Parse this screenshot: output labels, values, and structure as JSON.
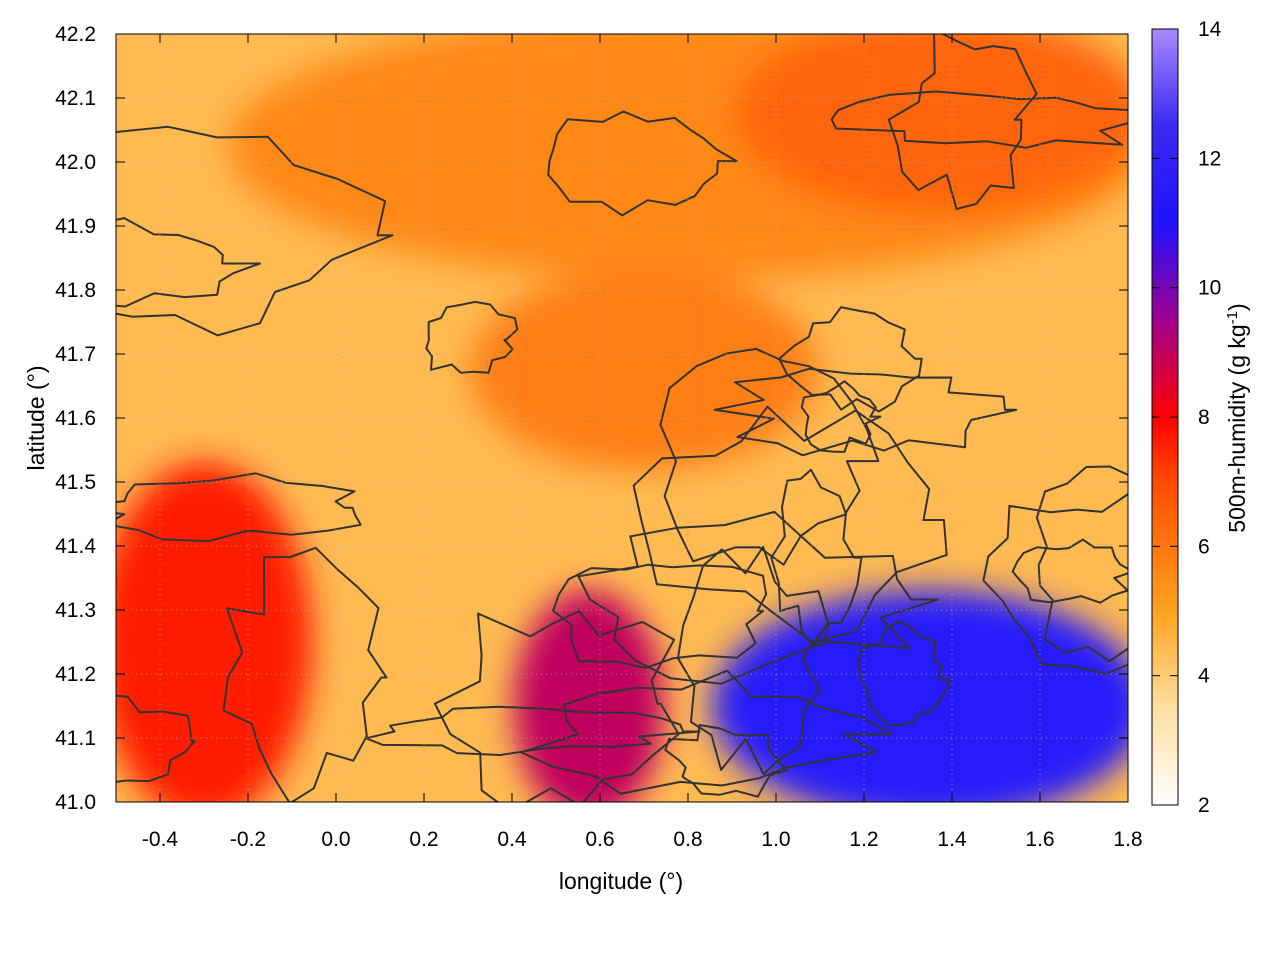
{
  "chart_data": {
    "type": "heatmap",
    "xlabel": "longitude (°)",
    "ylabel": "latitude (°)",
    "colorbar_label": "500m-humidity (g kg",
    "colorbar_label_superscript": "-1",
    "colorbar_label_suffix": ")",
    "xlim": [
      -0.5,
      1.8
    ],
    "ylim": [
      41.0,
      42.2
    ],
    "clim": [
      2,
      14
    ],
    "x_ticks": [
      "-0.4",
      "-0.2",
      "0.0",
      "0.2",
      "0.4",
      "0.6",
      "0.8",
      "1.0",
      "1.2",
      "1.4",
      "1.6",
      "1.8"
    ],
    "x_tick_values": [
      -0.4,
      -0.2,
      0.0,
      0.2,
      0.4,
      0.6,
      0.8,
      1.0,
      1.2,
      1.4,
      1.6,
      1.8
    ],
    "y_ticks": [
      "41.0",
      "41.1",
      "41.2",
      "41.3",
      "41.4",
      "41.5",
      "41.6",
      "41.7",
      "41.8",
      "41.9",
      "42.0",
      "42.1",
      "42.2"
    ],
    "y_tick_values": [
      41.0,
      41.1,
      41.2,
      41.3,
      41.4,
      41.5,
      41.6,
      41.7,
      41.8,
      41.9,
      42.0,
      42.1,
      42.2
    ],
    "colorbar_ticks": [
      "2",
      "4",
      "6",
      "8",
      "10",
      "12",
      "14"
    ],
    "colorbar_tick_values": [
      2,
      4,
      6,
      8,
      10,
      12,
      14
    ],
    "colormap": [
      {
        "value": 2,
        "color": "#ffffff"
      },
      {
        "value": 3.5,
        "color": "#ffdf9f"
      },
      {
        "value": 5,
        "color": "#ffa21f"
      },
      {
        "value": 7,
        "color": "#ff4b00"
      },
      {
        "value": 8,
        "color": "#ff0000"
      },
      {
        "value": 9.5,
        "color": "#a1008f"
      },
      {
        "value": 11,
        "color": "#1f12ff"
      },
      {
        "value": 12.5,
        "color": "#3a2af0"
      },
      {
        "value": 14,
        "color": "#a88bff"
      }
    ],
    "grid": true,
    "contours": true,
    "contour_color": "#333333",
    "regions": [
      {
        "name": "background",
        "value": 4.4
      },
      {
        "name": "north-belt",
        "value": 5.6,
        "bounds": {
          "x": [
            -0.2,
            1.8
          ],
          "y": [
            41.85,
            42.2
          ]
        }
      },
      {
        "name": "northeast-high",
        "value": 6.4,
        "bounds": {
          "x": [
            0.95,
            1.8
          ],
          "y": [
            41.95,
            42.2
          ]
        }
      },
      {
        "name": "central-ridge",
        "value": 5.8,
        "bounds": {
          "x": [
            0.35,
            1.05
          ],
          "y": [
            41.55,
            41.8
          ]
        }
      },
      {
        "name": "west-moist",
        "value": 7.6,
        "bounds": {
          "x": [
            -0.5,
            -0.1
          ],
          "y": [
            41.0,
            41.5
          ]
        }
      },
      {
        "name": "coastal-moist",
        "value": 11.5,
        "bounds": {
          "x": [
            0.9,
            1.8
          ],
          "y": [
            41.0,
            41.3
          ]
        }
      },
      {
        "name": "delta-moist",
        "value": 9.0,
        "bounds": {
          "x": [
            0.45,
            0.7
          ],
          "y": [
            41.0,
            41.3
          ]
        }
      }
    ]
  }
}
